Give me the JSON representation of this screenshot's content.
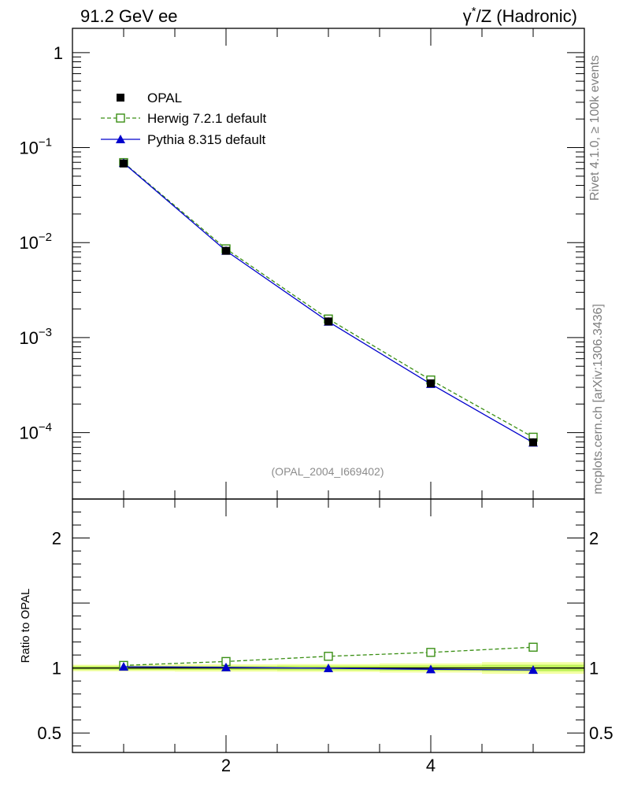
{
  "header": {
    "left_title": "91.2 GeV ee",
    "right_title_gamma": "γ",
    "right_title_star": "*",
    "right_title_rest": "/Z (Hadronic)"
  },
  "side_labels": {
    "rivet": "Rivet 4.1.0, ≥ 100k events",
    "mcplots": "mcplots.cern.ch [arXiv:1306.3436]"
  },
  "analysis_label": "(OPAL_2004_I669402)",
  "colors": {
    "opal": "#000000",
    "herwig": "#3a8f14",
    "pythia": "#0000cc",
    "band_inner": "#bff25a",
    "band_outer": "#f2ffa3",
    "analysis_text": "#8c8c8c",
    "side_text": "#7f7f7f"
  },
  "chart_data": [
    {
      "type": "line",
      "panel": "main",
      "yscale": "log",
      "xlim": [
        0.5,
        5.5
      ],
      "ylim": [
        2e-05,
        1.8
      ],
      "xlabel": "",
      "ylabel": "",
      "y_tick_labels": [
        {
          "value": 1,
          "base": "1",
          "exp": ""
        },
        {
          "value": 0.1,
          "base": "10",
          "exp": "−1"
        },
        {
          "value": 0.01,
          "base": "10",
          "exp": "−2"
        },
        {
          "value": 0.001,
          "base": "10",
          "exp": "−3"
        },
        {
          "value": 0.0001,
          "base": "10",
          "exp": "−4"
        }
      ],
      "x": [
        1,
        2,
        3,
        4,
        5
      ],
      "series": [
        {
          "name": "OPAL",
          "style": "data-square",
          "values": [
            0.068,
            0.0082,
            0.00148,
            0.00033,
            7.9e-05
          ]
        },
        {
          "name": "Herwig 7.2.1 default",
          "style": "dashed-open-square",
          "values": [
            0.0695,
            0.0086,
            0.00157,
            0.000358,
            8.95e-05
          ]
        },
        {
          "name": "Pythia 8.315 default",
          "style": "solid-triangle",
          "values": [
            0.0688,
            0.0082,
            0.00147,
            0.000325,
            7.85e-05
          ]
        }
      ],
      "legend": {
        "position": "top-left",
        "entries": [
          "OPAL",
          "Herwig 7.2.1 default",
          "Pythia 8.315 default"
        ]
      }
    },
    {
      "type": "line",
      "panel": "ratio",
      "yscale": "linear",
      "xlim": [
        0.5,
        5.5
      ],
      "ylim": [
        0.35,
        2.3
      ],
      "ylabel": "Ratio to OPAL",
      "y_tick_labels": [
        {
          "value": 0.5,
          "label": "0.5"
        },
        {
          "value": 1,
          "label": "1"
        },
        {
          "value": 2,
          "label": "2"
        }
      ],
      "x_tick_labels": [
        {
          "value": 2,
          "label": "2"
        },
        {
          "value": 4,
          "label": "4"
        }
      ],
      "x": [
        1,
        2,
        3,
        4,
        5
      ],
      "series": [
        {
          "name": "Herwig 7.2.1 default",
          "style": "dashed-open-square",
          "values": [
            1.02,
            1.05,
            1.09,
            1.12,
            1.16
          ]
        },
        {
          "name": "Pythia 8.315 default",
          "style": "solid-triangle",
          "values": [
            1.01,
            1.005,
            0.998,
            0.99,
            0.985
          ]
        }
      ],
      "uncertainty_band": {
        "x": [
          0.5,
          1.5,
          2.5,
          3.5,
          4.5,
          5.5
        ],
        "inner": [
          0.015,
          0.015,
          0.018,
          0.02,
          0.025
        ],
        "outer": [
          0.025,
          0.028,
          0.03,
          0.035,
          0.045
        ]
      }
    }
  ]
}
